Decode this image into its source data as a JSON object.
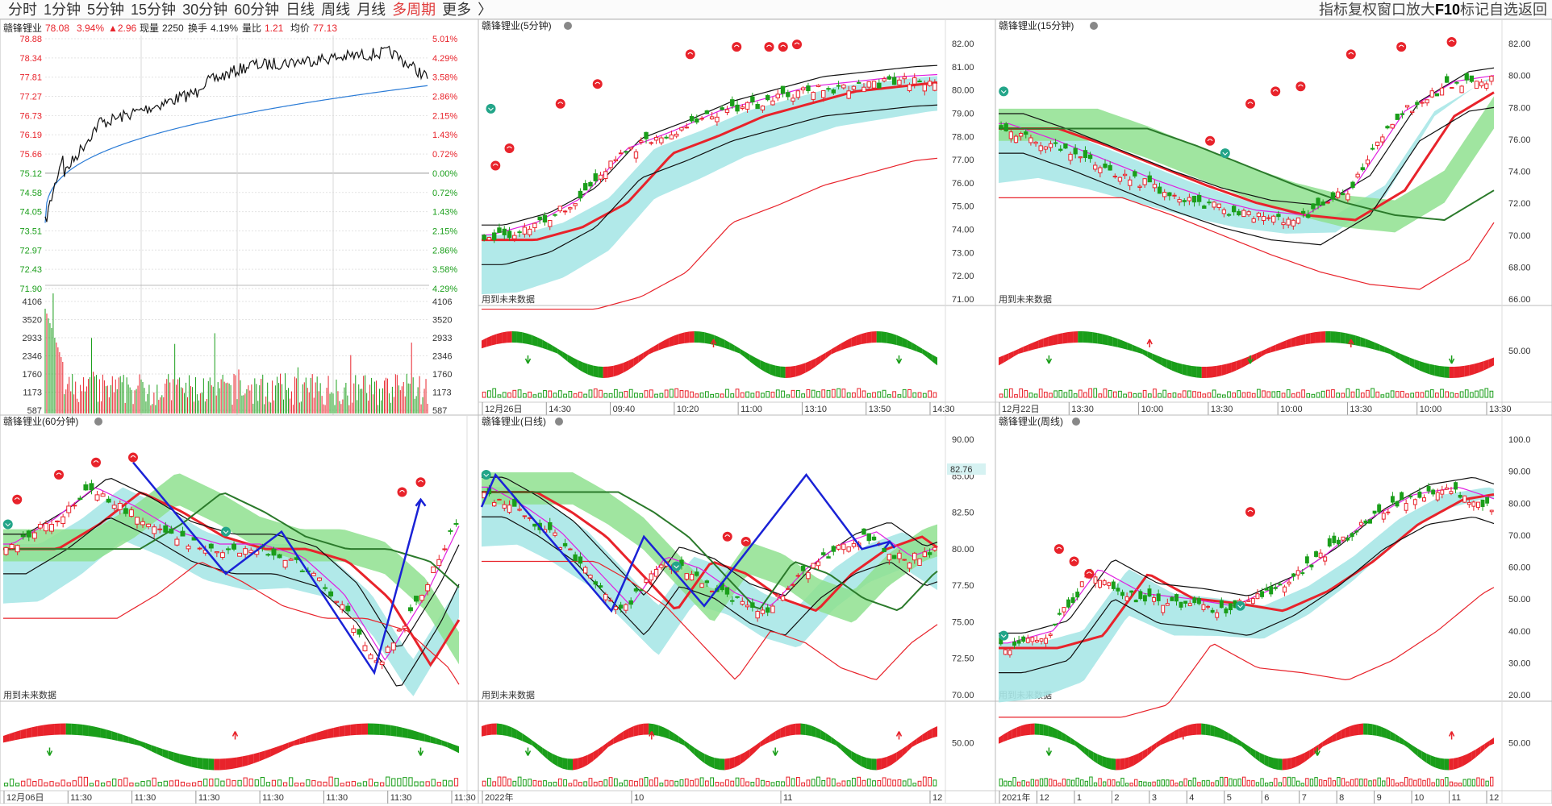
{
  "toolbar": {
    "tabs": [
      "分时",
      "1分钟",
      "5分钟",
      "15分钟",
      "30分钟",
      "60分钟",
      "日线",
      "周线",
      "月线",
      "多周期",
      "更多"
    ],
    "active_tab": "多周期",
    "more_arrow": "〉",
    "tools": [
      "指标",
      "复权",
      "窗口",
      "放大",
      "F10",
      "标记",
      "自选",
      "返回"
    ]
  },
  "timeshare": {
    "stock": "赣锋锂业",
    "price": "78.08",
    "pct": "3.94%",
    "change": "▲2.96",
    "volume_label": "现量",
    "volume": "2250",
    "turnover_label": "换手",
    "turnover": "4.19%",
    "ratio_label": "量比",
    "ratio": "1.21",
    "avg_label": "均价",
    "avg": "77.13",
    "left_prices": [
      "78.88",
      "78.34",
      "77.81",
      "77.27",
      "76.73",
      "76.19",
      "75.66",
      "75.12",
      "74.58",
      "74.05",
      "73.51",
      "72.97",
      "72.43",
      "71.90"
    ],
    "right_pcts": [
      "5.01%",
      "4.29%",
      "3.58%",
      "2.86%",
      "2.15%",
      "1.43%",
      "0.72%",
      "0.00%",
      "0.72%",
      "1.43%",
      "2.15%",
      "2.86%",
      "3.58%",
      "4.29%"
    ],
    "vol_ticks": [
      "4106",
      "3520",
      "2933",
      "2346",
      "1760",
      "1173",
      "587"
    ]
  },
  "panels": [
    {
      "title": "赣锋锂业(5分钟)",
      "yticks": [
        "82.00",
        "81.00",
        "80.00",
        "79.00",
        "78.00",
        "77.00",
        "76.00",
        "75.00",
        "74.00",
        "73.00",
        "72.00",
        "71.00"
      ],
      "sub_ticks": [],
      "x": [
        "12月26日",
        "14:30",
        "09:40",
        "10:20",
        "11:00",
        "13:10",
        "13:50",
        "14:30"
      ]
    },
    {
      "title": "赣锋锂业(15分钟)",
      "yticks": [
        "82.00",
        "80.00",
        "78.00",
        "76.00",
        "74.00",
        "72.00",
        "70.00",
        "68.00",
        "66.00"
      ],
      "sub_ticks": [
        "50.00"
      ],
      "x": [
        "12月22日",
        "13:30",
        "10:00",
        "13:30",
        "10:00",
        "13:30",
        "10:00",
        "13:30"
      ]
    },
    {
      "title": "赣锋锂业(60分钟)",
      "yticks": [],
      "sub_ticks": [],
      "x": [
        "12月06日",
        "11:30",
        "11:30",
        "11:30",
        "11:30",
        "11:30",
        "11:30",
        "11:30"
      ]
    },
    {
      "title": "赣锋锂业(日线)",
      "yticks": [
        "90.00",
        "85.00",
        "82.50",
        "80.00",
        "77.50",
        "75.00",
        "72.50",
        "70.00"
      ],
      "sub_ticks": [
        "50.00"
      ],
      "x": [
        "2022年",
        "10",
        "11",
        "12"
      ],
      "price_tag": "82.76"
    },
    {
      "title": "赣锋锂业(周线)",
      "yticks": [
        "100.0",
        "90.00",
        "80.00",
        "70.00",
        "60.00",
        "50.00",
        "40.00",
        "30.00",
        "20.00"
      ],
      "sub_ticks": [
        "50.00"
      ],
      "x": [
        "2021年",
        "12",
        "1",
        "2",
        "3",
        "4",
        "5",
        "6",
        "7",
        "8",
        "9",
        "10",
        "11",
        "12"
      ]
    }
  ],
  "future_note": "用到未来数据",
  "colors": {
    "up": "#e8232b",
    "down": "#1a9e1a",
    "band_cyan": "#a9e7e7",
    "band_green": "#8fe08f",
    "zigzag": "#1a22d6",
    "avg_line": "#2a7bd6",
    "price_line": "#111111",
    "grid": "#e3e3e3"
  },
  "chart_data": []
}
